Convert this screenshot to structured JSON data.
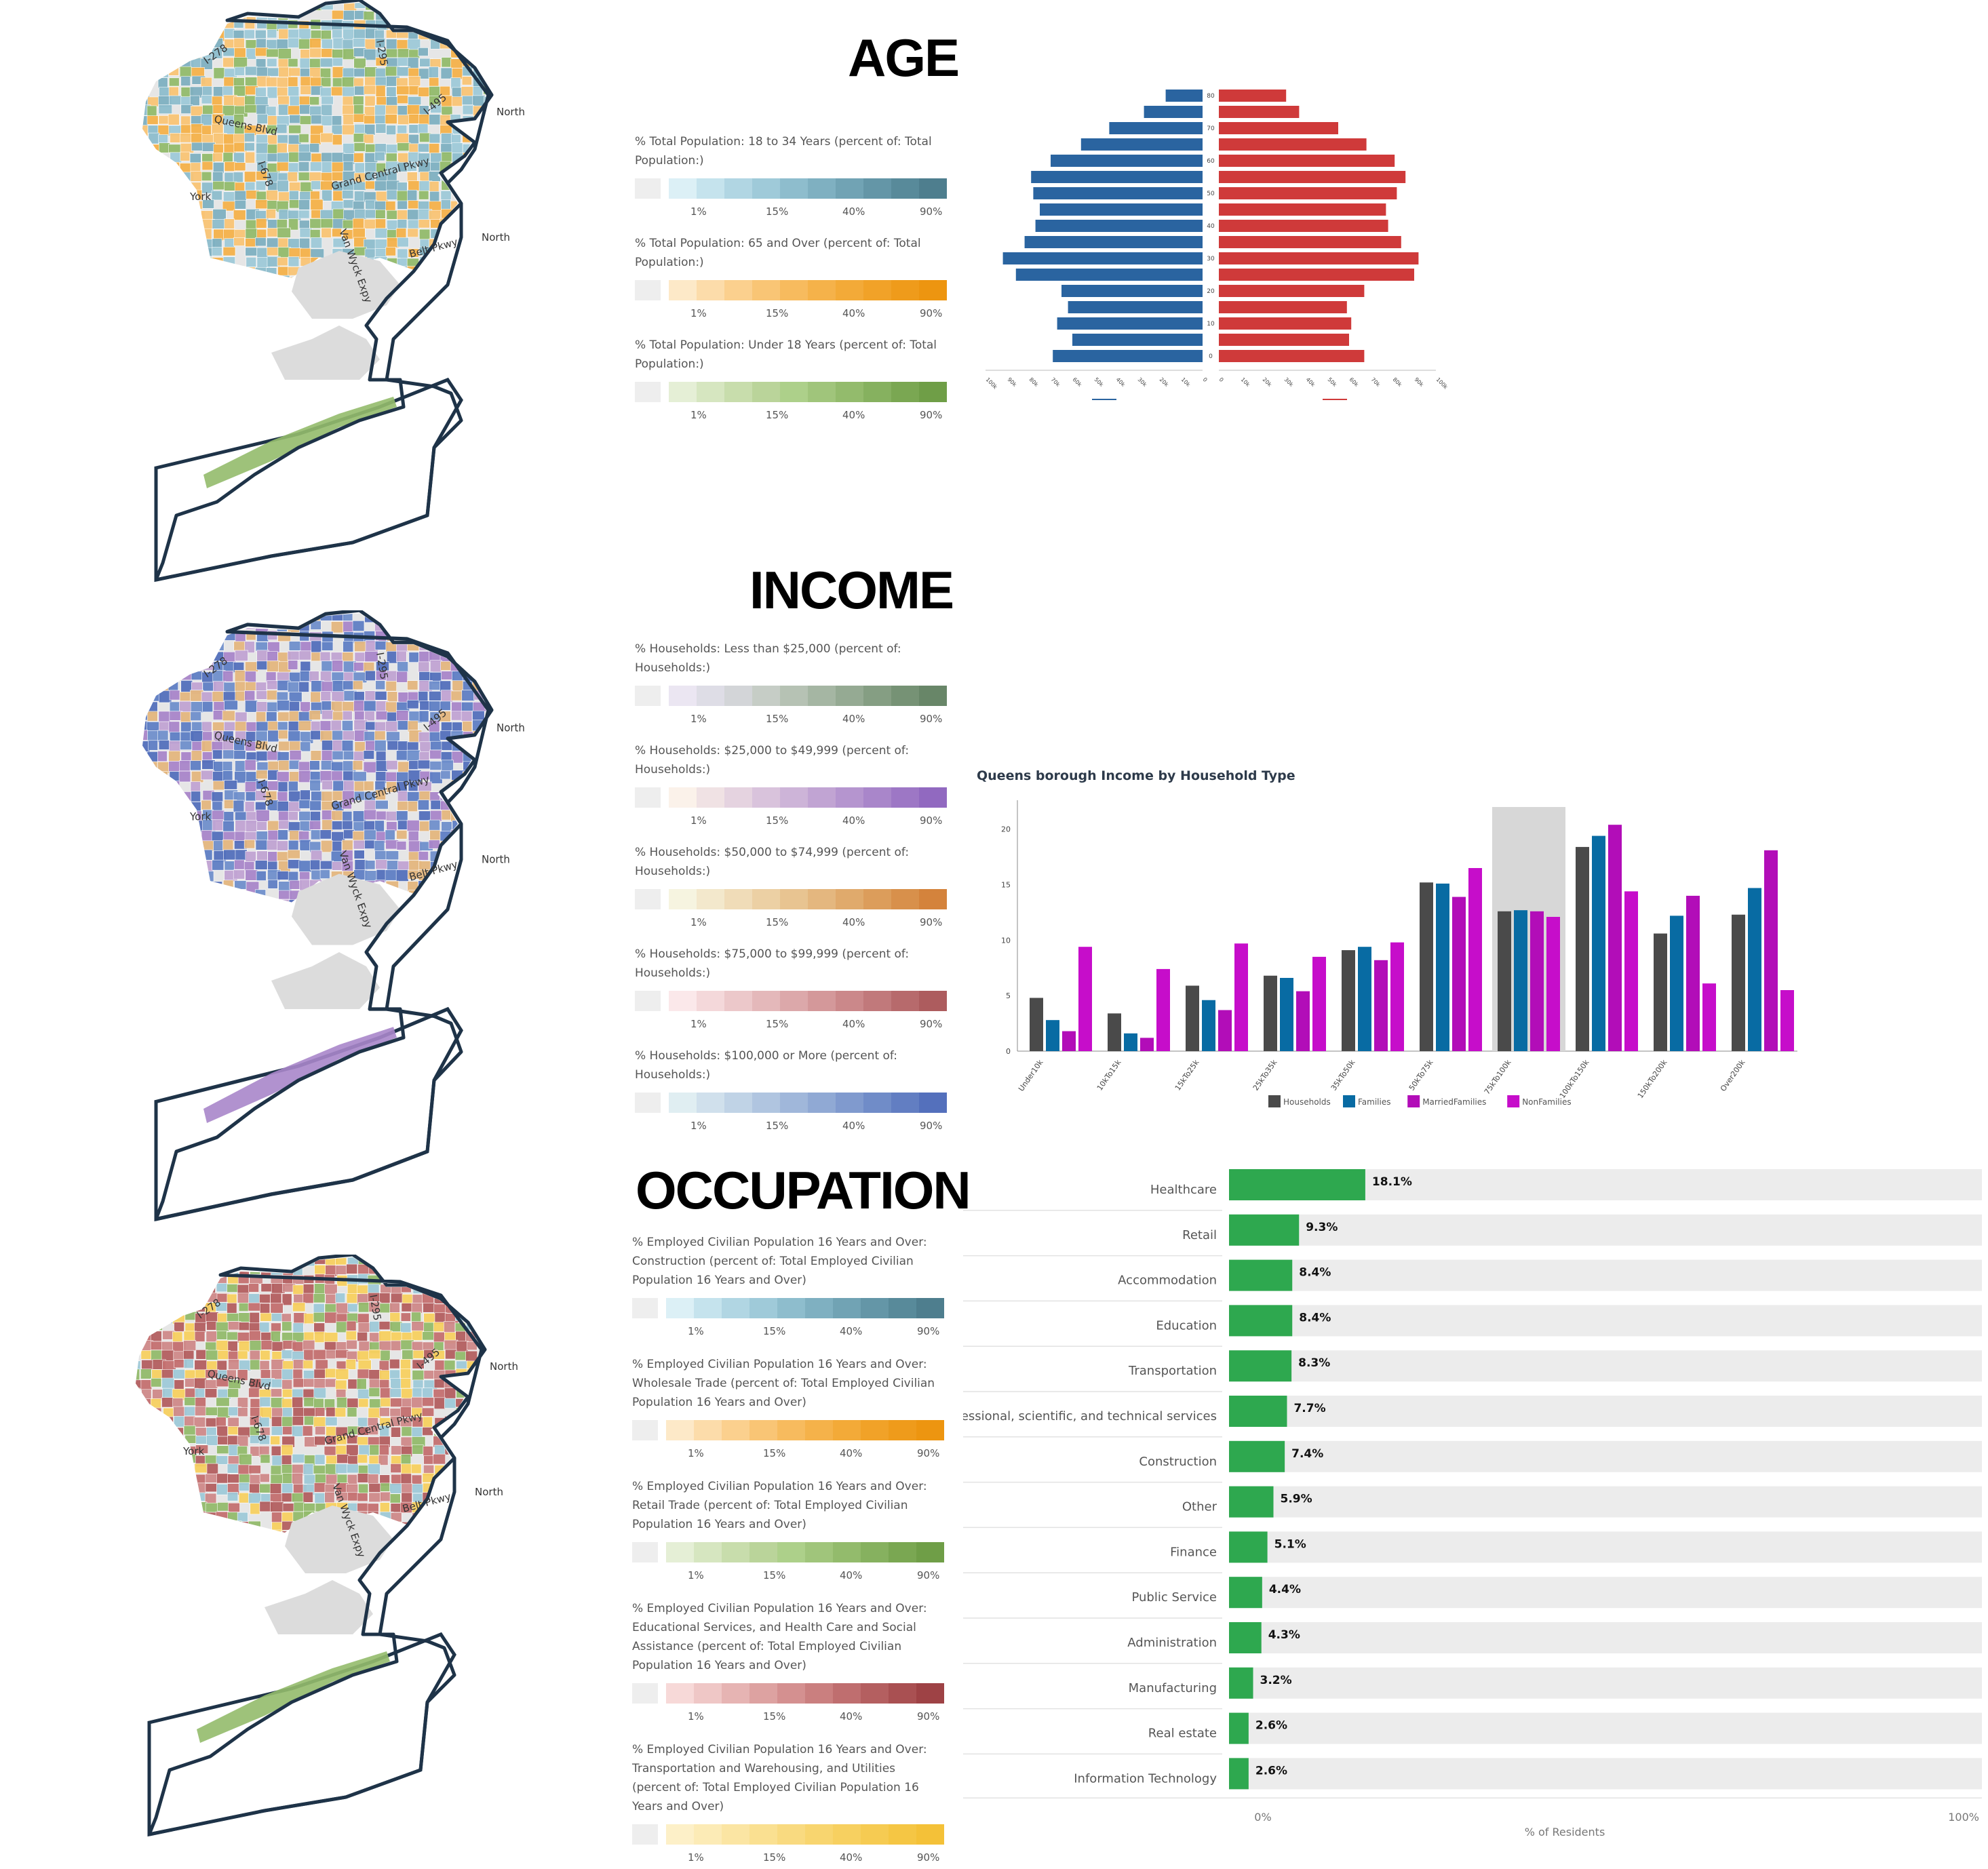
{
  "sections": {
    "age": "AGE",
    "income": "INCOME",
    "occupation": "OCCUPATION"
  },
  "map_labels": [
    "I-278",
    "Queens Blvd",
    "I-678",
    "I-295",
    "I-495",
    "Grand Central Pkwy",
    "Van Wyck Expy",
    "Belt Pkwy",
    "North",
    "York",
    "North"
  ],
  "legend_ticks": [
    "1%",
    "15%",
    "40%",
    "90%"
  ],
  "legends": {
    "age": [
      {
        "title": "% Total Population: 18 to 34 Years (percent of: Total Population:)",
        "colors": [
          "#dcf0f6",
          "#c5e3ed",
          "#b1d6e3",
          "#9fcad9",
          "#8ebdcd",
          "#7fb0c1",
          "#71a3b4",
          "#6496a7",
          "#588a9a",
          "#4e7e8e"
        ]
      },
      {
        "title": "% Total Population: 65 and Over (percent of: Total Population:)",
        "colors": [
          "#fde9c8",
          "#fcdcaa",
          "#fbd08e",
          "#f9c575",
          "#f7bb5e",
          "#f5b24a",
          "#f3aa38",
          "#f1a228",
          "#ef9b1b",
          "#ed9510"
        ]
      },
      {
        "title": "% Total Population: Under 18 Years (percent of: Total Population:)",
        "colors": [
          "#e5efd6",
          "#d6e6c0",
          "#c8ddac",
          "#bad49a",
          "#add08a",
          "#a0c57b",
          "#93bb6c",
          "#86b15f",
          "#7aa752",
          "#6f9e47"
        ]
      }
    ],
    "income": [
      {
        "title": "% Households: Less than $25,000 (percent of: Households:)",
        "colors": [
          "#ebe6f2",
          "#dedde6",
          "#d3d5d8",
          "#c6cdc6",
          "#b6c2b4",
          "#a5b6a3",
          "#95aa93",
          "#859e83",
          "#769275",
          "#688668"
        ]
      },
      {
        "title": "% Households: $25,000 to $49,999 (percent of: Households:)",
        "colors": [
          "#fbf2ea",
          "#f0e2e4",
          "#e5d3e0",
          "#d9c3dc",
          "#cdb4d8",
          "#c1a4d3",
          "#b595cf",
          "#a986ca",
          "#9d77c5",
          "#9169c0"
        ]
      },
      {
        "title": "% Households: $50,000 to $74,999 (percent of: Households:)",
        "colors": [
          "#f6f4e0",
          "#f3e8cc",
          "#f0dcb8",
          "#ecd0a4",
          "#e8c491",
          "#e4b77f",
          "#e0aa6c",
          "#dc9d5b",
          "#d8904b",
          "#d4833c"
        ]
      },
      {
        "title": "% Households: $75,000 to $99,999 (percent of: Households:)",
        "colors": [
          "#fbe8ea",
          "#f4d8da",
          "#ecc8ca",
          "#e4b8ba",
          "#dca8aa",
          "#d4989a",
          "#cb888a",
          "#c1797b",
          "#b76a6c",
          "#ad5c5e"
        ]
      },
      {
        "title": "% Households: $100,000 or More (percent of: Households:)",
        "colors": [
          "#e0eef2",
          "#d0e0ec",
          "#c0d3e6",
          "#b0c5e0",
          "#a0b7da",
          "#90a9d4",
          "#809ace",
          "#708cc8",
          "#627ec2",
          "#5470bc"
        ]
      }
    ],
    "occupation": [
      {
        "title": "% Employed Civilian Population 16 Years and Over: Construction (percent of: Total Employed Civilian Population 16 Years and Over)",
        "colors": [
          "#dcf0f6",
          "#c5e3ed",
          "#b1d6e3",
          "#9fcad9",
          "#8ebdcd",
          "#7fb0c1",
          "#71a3b4",
          "#6496a7",
          "#588a9a",
          "#4e7e8e"
        ]
      },
      {
        "title": "% Employed Civilian Population 16 Years and Over: Wholesale Trade (percent of: Total Employed Civilian Population 16 Years and Over)",
        "colors": [
          "#fde9c8",
          "#fcdcaa",
          "#fbd08e",
          "#f9c575",
          "#f7bb5e",
          "#f5b24a",
          "#f3aa38",
          "#f1a228",
          "#ef9b1b",
          "#ed9510"
        ]
      },
      {
        "title": "% Employed Civilian Population 16 Years and Over: Retail Trade (percent of: Total Employed Civilian Population 16 Years and Over)",
        "colors": [
          "#e5efd6",
          "#d6e6c0",
          "#c8ddac",
          "#bad49a",
          "#add08a",
          "#a0c57b",
          "#93bb6c",
          "#86b15f",
          "#7aa752",
          "#6f9e47"
        ]
      },
      {
        "title": "% Employed Civilian Population 16 Years and Over: Educational Services, and Health Care and Social Assistance (percent of: Total Employed Civilian Population 16 Years and Over)",
        "colors": [
          "#f7d9d8",
          "#efc7c6",
          "#e6b4b3",
          "#ddA2a1",
          "#d49090",
          "#ca7f7f",
          "#bf6e6f",
          "#b45f60",
          "#a95052",
          "#9e4245"
        ]
      },
      {
        "title": "% Employed Civilian Population 16 Years and Over: Transportation and Warehousing, and Utilities (percent of: Total Employed Civilian Population 16 Years and Over)",
        "colors": [
          "#fdf0c8",
          "#fcebb6",
          "#fbe5a3",
          "#fae091",
          "#f9da80",
          "#f8d56f",
          "#f7d060",
          "#f6cb52",
          "#f5c644",
          "#f4c138"
        ]
      }
    ]
  },
  "map_colors": {
    "age": [
      "#7fb0c1",
      "#9fcad9",
      "#f5b24a",
      "#93bb6c",
      "#8ebdcd",
      "#f9c575"
    ],
    "income": [
      "#5f7fc5",
      "#7090cc",
      "#5470bc",
      "#a986ca",
      "#c1a4d3",
      "#e4b77f"
    ],
    "occupation": [
      "#c47070",
      "#b45f60",
      "#cf8a8a",
      "#93bb6c",
      "#9fcad9",
      "#f7d060"
    ]
  },
  "chart_data": [
    {
      "type": "bar",
      "subtype": "population-pyramid",
      "categories": [
        "0",
        "5",
        "10",
        "15",
        "20",
        "25",
        "30",
        "35",
        "40",
        "45",
        "50",
        "55",
        "60",
        "65",
        "70",
        "75",
        "80"
      ],
      "series": [
        {
          "name": "Male",
          "color": "#2a64a0",
          "values": [
            69000,
            60000,
            67000,
            62000,
            65000,
            86000,
            92000,
            82000,
            77000,
            75000,
            78000,
            79000,
            70000,
            56000,
            43000,
            27000,
            17000
          ]
        },
        {
          "name": "Female",
          "color": "#cf3a3a",
          "values": [
            67000,
            60000,
            61000,
            59000,
            67000,
            90000,
            92000,
            84000,
            78000,
            77000,
            82000,
            86000,
            81000,
            68000,
            55000,
            37000,
            31000
          ]
        }
      ],
      "center_tick_labels": [
        "0",
        "10",
        "20",
        "30",
        "40",
        "50",
        "60",
        "70",
        "80"
      ],
      "left_axis_labels": [
        "100k",
        "90k",
        "80k",
        "70k",
        "60k",
        "50k",
        "40k",
        "30k",
        "20k",
        "10k",
        "0"
      ],
      "right_axis_labels": [
        "0",
        "10k",
        "20k",
        "30k",
        "40k",
        "50k",
        "60k",
        "70k",
        "80k",
        "90k",
        "100k"
      ],
      "xlim": [
        0,
        100000
      ]
    },
    {
      "type": "bar",
      "title": "Queens borough Income by Household Type",
      "categories": [
        "Under10k",
        "10kTo15k",
        "15kTo25k",
        "25kTo35k",
        "35kTo50k",
        "50kTo75k",
        "75kTo100k",
        "100kTo150k",
        "150kTo200k",
        "Over200k"
      ],
      "series": [
        {
          "name": "Households",
          "color": "#4a4a4a",
          "values": [
            4.8,
            3.4,
            5.9,
            6.8,
            9.1,
            15.2,
            12.6,
            18.4,
            10.6,
            12.3
          ]
        },
        {
          "name": "Families",
          "color": "#086ba3",
          "values": [
            2.8,
            1.6,
            4.6,
            6.6,
            9.4,
            15.1,
            12.7,
            19.4,
            12.2,
            14.7
          ]
        },
        {
          "name": "MarriedFamilies",
          "color": "#b20db8",
          "values": [
            1.8,
            1.2,
            3.7,
            5.4,
            8.2,
            13.9,
            12.6,
            20.4,
            14.0,
            18.1
          ]
        },
        {
          "name": "NonFamilies",
          "color": "#c60dca",
          "values": [
            9.4,
            7.4,
            9.7,
            8.5,
            9.8,
            16.5,
            12.1,
            14.4,
            6.1,
            5.5
          ]
        }
      ],
      "highlight_category": "75kTo100k",
      "yticks": [
        "0",
        "5",
        "10",
        "15",
        "20"
      ],
      "ylim": [
        0,
        22
      ]
    },
    {
      "type": "bar",
      "orientation": "horizontal",
      "categories": [
        "Healthcare",
        "Retail",
        "Accommodation",
        "Education",
        "Transportation",
        "Professional, scientific, and technical services",
        "Construction",
        "Other",
        "Finance",
        "Public Service",
        "Administration",
        "Manufacturing",
        "Real estate",
        "Information Technology"
      ],
      "values": [
        18.1,
        9.3,
        8.4,
        8.4,
        8.3,
        7.7,
        7.4,
        5.9,
        5.1,
        4.4,
        4.3,
        3.2,
        2.6,
        2.6
      ],
      "value_labels": [
        "18.1%",
        "9.3%",
        "8.4%",
        "8.4%",
        "8.3%",
        "7.7%",
        "7.4%",
        "5.9%",
        "5.1%",
        "4.4%",
        "4.3%",
        "3.2%",
        "2.6%",
        "2.6%"
      ],
      "color": "#2ea84f",
      "track_color": "#ececec",
      "xlim": [
        0,
        100
      ],
      "x_min_label": "0%",
      "x_max_label": "100%",
      "xlabel": "% of Residents"
    }
  ]
}
